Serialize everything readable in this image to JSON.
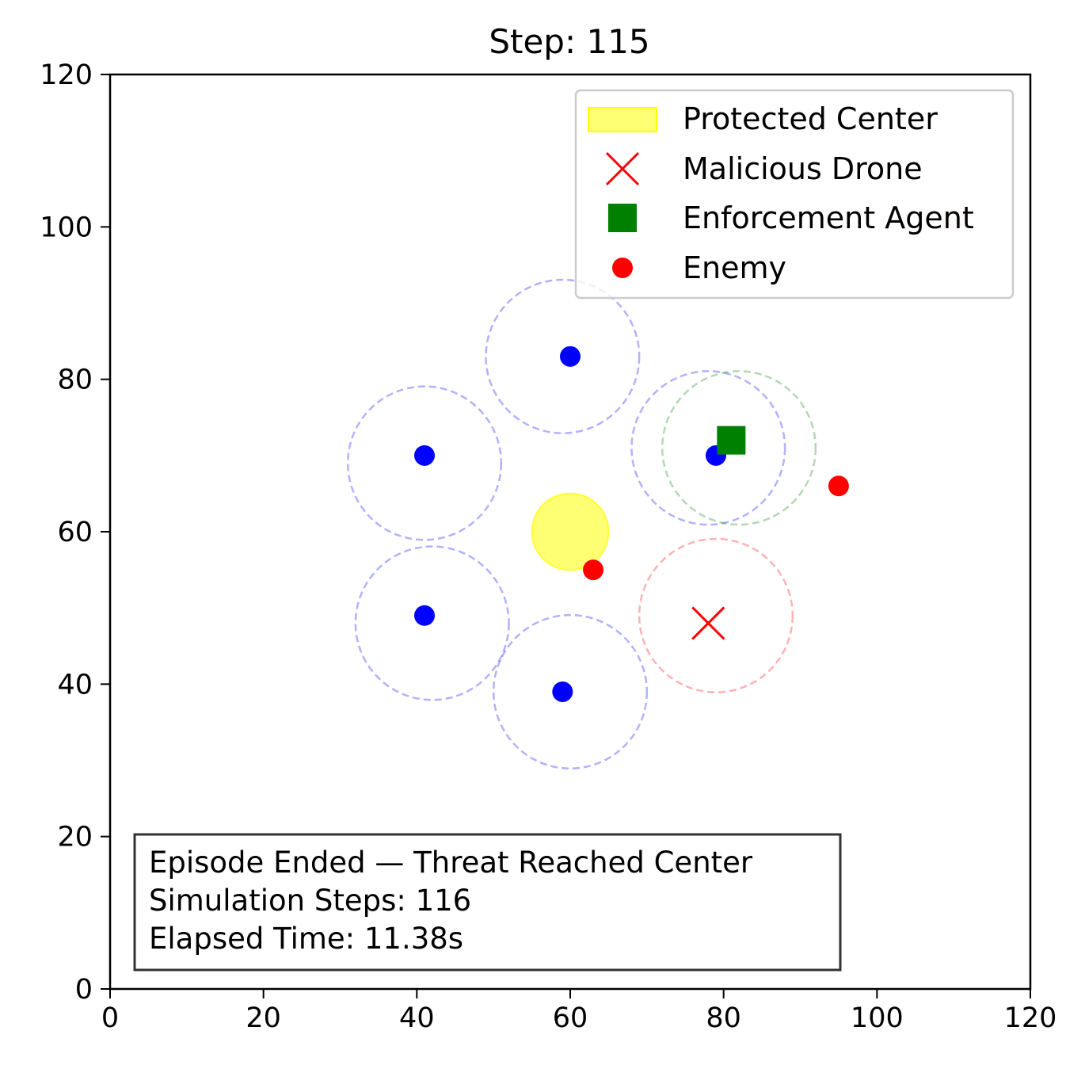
{
  "chart_data": {
    "type": "scatter",
    "title": "Step: 115",
    "xlabel": "",
    "ylabel": "",
    "xlim": [
      0,
      120
    ],
    "ylim": [
      0,
      120
    ],
    "xticks": [
      0,
      20,
      40,
      60,
      80,
      100,
      120
    ],
    "yticks": [
      0,
      20,
      40,
      60,
      80,
      100,
      120
    ],
    "grid": false,
    "legend_placement": "top-right",
    "legend": [
      {
        "label": "Protected Center",
        "marker": "patch",
        "color": "#ffff00"
      },
      {
        "label": "Malicious Drone",
        "marker": "x",
        "color": "#ff0000"
      },
      {
        "label": "Enforcement Agent",
        "marker": "square",
        "color": "#008000"
      },
      {
        "label": "Enemy",
        "marker": "dot",
        "color": "#ff0000"
      }
    ],
    "protected_center": {
      "x": 60,
      "y": 60,
      "radius": 5,
      "color": "#ffff00"
    },
    "blue_agents": {
      "color": "#0000ff",
      "points": [
        {
          "x": 60,
          "y": 83
        },
        {
          "x": 41,
          "y": 70
        },
        {
          "x": 79,
          "y": 70
        },
        {
          "x": 41,
          "y": 49
        },
        {
          "x": 59,
          "y": 39
        }
      ]
    },
    "blue_ranges": {
      "color": "#0000ff",
      "radius": 10,
      "centers": [
        {
          "x": 59,
          "y": 83
        },
        {
          "x": 41,
          "y": 69
        },
        {
          "x": 78,
          "y": 71
        },
        {
          "x": 42,
          "y": 48
        },
        {
          "x": 60,
          "y": 39
        }
      ]
    },
    "enforcement_agent": {
      "x": 81,
      "y": 72,
      "color": "#008000",
      "range_radius": 10,
      "range_center": {
        "x": 82,
        "y": 71
      }
    },
    "malicious_drone": {
      "x": 78,
      "y": 48,
      "color": "#ff0000",
      "range_radius": 10,
      "range_center": {
        "x": 79,
        "y": 49
      }
    },
    "enemies": {
      "color": "#ff0000",
      "points": [
        {
          "x": 63,
          "y": 55,
          "alpha": 1
        },
        {
          "x": 95,
          "y": 66,
          "alpha": 1
        },
        {
          "x": 110,
          "y": 101,
          "alpha": 0.15
        }
      ]
    },
    "info_box": [
      "Episode Ended — Threat Reached Center",
      "Simulation Steps: 116",
      "Elapsed Time: 11.38s"
    ]
  }
}
